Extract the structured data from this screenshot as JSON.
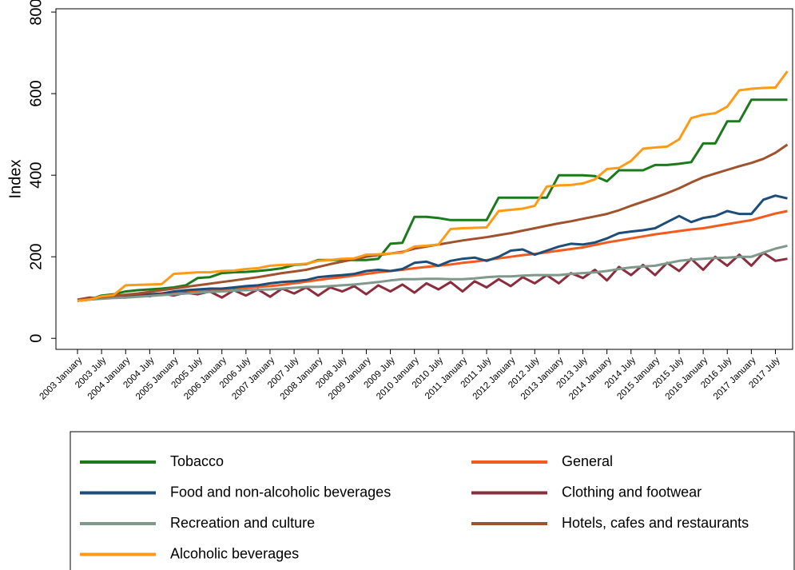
{
  "chart_data": {
    "type": "line",
    "ylabel": "Index",
    "ylim": [
      -27,
      808
    ],
    "yticks": [
      0,
      200,
      400,
      600,
      800
    ],
    "categories": [
      "2003 January",
      null,
      "2003 July",
      null,
      "2004 January",
      null,
      "2004 July",
      null,
      "2005 January",
      null,
      "2005 July",
      null,
      "2006 January",
      null,
      "2006 July",
      null,
      "2007 January",
      null,
      "2007 July",
      null,
      "2008 January",
      null,
      "2008 July",
      null,
      "2009 January",
      null,
      "2009 July",
      null,
      "2010 January",
      null,
      "2010 July",
      null,
      "2011 January",
      null,
      "2011 July",
      null,
      "2012 January",
      null,
      "2012 July",
      null,
      "2013 January",
      null,
      "2013 July",
      null,
      "2014 January",
      null,
      "2014 July",
      null,
      "2015 January",
      null,
      "2015 July",
      null,
      "2016 January",
      null,
      "2016 July",
      null,
      "2017 January",
      null,
      "2017 July",
      null
    ],
    "series": [
      {
        "name": "Tobacco",
        "color": "#1b7a1b",
        "values": [
          92,
          95,
          105,
          108,
          115,
          118,
          120,
          122,
          125,
          130,
          148,
          150,
          160,
          162,
          163,
          165,
          168,
          172,
          180,
          182,
          192,
          192,
          192,
          192,
          192,
          195,
          232,
          234,
          298,
          298,
          295,
          290,
          290,
          290,
          290,
          345,
          345,
          345,
          345,
          345,
          400,
          400,
          400,
          398,
          385,
          412,
          412,
          412,
          425,
          425,
          428,
          432,
          478,
          478,
          532,
          532,
          585,
          585,
          585,
          585
        ]
      },
      {
        "name": "General",
        "color": "#f25a1e",
        "values": [
          92,
          95,
          98,
          100,
          102,
          105,
          108,
          110,
          113,
          115,
          117,
          119,
          120,
          122,
          124,
          126,
          128,
          131,
          135,
          139,
          143,
          147,
          150,
          154,
          158,
          162,
          165,
          168,
          172,
          175,
          178,
          181,
          185,
          188,
          192,
          196,
          200,
          204,
          207,
          211,
          215,
          219,
          223,
          229,
          235,
          240,
          245,
          250,
          255,
          259,
          263,
          267,
          270,
          275,
          280,
          285,
          290,
          298,
          306,
          312
        ]
      },
      {
        "name": "Food and non-alcoholic beverages",
        "color": "#1f4d7a",
        "values": [
          92,
          96,
          98,
          100,
          102,
          105,
          108,
          110,
          115,
          118,
          120,
          122,
          122,
          125,
          128,
          130,
          135,
          138,
          140,
          143,
          150,
          153,
          155,
          158,
          165,
          168,
          165,
          170,
          185,
          188,
          178,
          190,
          195,
          198,
          190,
          200,
          215,
          218,
          205,
          215,
          225,
          232,
          230,
          235,
          245,
          258,
          262,
          265,
          270,
          285,
          300,
          285,
          295,
          300,
          312,
          305,
          305,
          340,
          350,
          343
        ]
      },
      {
        "name": "Clothing and footwear",
        "color": "#8b2d3c",
        "values": [
          95,
          100,
          98,
          102,
          100,
          108,
          103,
          110,
          105,
          112,
          108,
          115,
          100,
          118,
          105,
          120,
          102,
          122,
          110,
          125,
          105,
          125,
          115,
          128,
          108,
          130,
          115,
          132,
          112,
          135,
          120,
          138,
          115,
          140,
          125,
          145,
          128,
          150,
          135,
          155,
          135,
          160,
          148,
          168,
          142,
          175,
          155,
          180,
          155,
          185,
          165,
          195,
          168,
          200,
          178,
          205,
          178,
          210,
          190,
          195
        ]
      },
      {
        "name": "Recreation and culture",
        "color": "#7f998b",
        "values": [
          92,
          95,
          97,
          99,
          100,
          102,
          104,
          106,
          108,
          110,
          112,
          114,
          115,
          117,
          118,
          119,
          120,
          122,
          124,
          126,
          126,
          128,
          130,
          132,
          135,
          138,
          142,
          145,
          145,
          146,
          146,
          145,
          145,
          147,
          150,
          152,
          152,
          154,
          155,
          155,
          155,
          158,
          160,
          162,
          165,
          170,
          174,
          176,
          178,
          184,
          190,
          193,
          195,
          197,
          198,
          200,
          200,
          210,
          220,
          227
        ]
      },
      {
        "name": "Hotels, cafes and restaurants",
        "color": "#a0522d",
        "values": [
          95,
          98,
          101,
          104,
          107,
          110,
          114,
          118,
          122,
          126,
          130,
          134,
          138,
          142,
          146,
          150,
          155,
          160,
          164,
          168,
          175,
          182,
          188,
          194,
          200,
          204,
          208,
          212,
          220,
          225,
          230,
          235,
          240,
          244,
          248,
          253,
          258,
          264,
          270,
          276,
          282,
          287,
          293,
          299,
          305,
          314,
          325,
          335,
          345,
          356,
          368,
          382,
          395,
          404,
          413,
          422,
          430,
          440,
          455,
          475
        ]
      },
      {
        "name": "Alcoholic beverages",
        "color": "#ff9a17",
        "values": [
          92,
          95,
          103,
          106,
          130,
          131,
          132,
          133,
          158,
          160,
          162,
          162,
          165,
          166,
          170,
          172,
          178,
          180,
          181,
          183,
          190,
          192,
          195,
          196,
          205,
          206,
          208,
          210,
          225,
          227,
          230,
          268,
          270,
          271,
          272,
          312,
          315,
          318,
          325,
          372,
          375,
          376,
          380,
          390,
          415,
          418,
          435,
          465,
          468,
          470,
          488,
          540,
          548,
          552,
          568,
          608,
          612,
          614,
          615,
          655
        ]
      }
    ]
  }
}
